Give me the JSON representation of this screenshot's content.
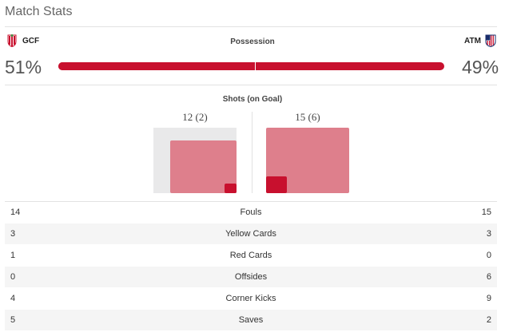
{
  "header": {
    "title": "Match Stats"
  },
  "teams": {
    "home": {
      "abbr": "GCF",
      "crest_icon": "granada-crest-icon"
    },
    "away": {
      "abbr": "ATM",
      "crest_icon": "atletico-crest-icon"
    }
  },
  "possession": {
    "label": "Possession",
    "home_pct": "51%",
    "away_pct": "49%",
    "home_value": 51,
    "away_value": 49
  },
  "shots": {
    "label": "Shots (on Goal)",
    "home_text": "12 (2)",
    "away_text": "15 (6)",
    "home_total": 12,
    "home_on_goal": 2,
    "away_total": 15,
    "away_on_goal": 6
  },
  "stats": [
    {
      "name": "Fouls",
      "home": "14",
      "away": "15"
    },
    {
      "name": "Yellow Cards",
      "home": "3",
      "away": "3"
    },
    {
      "name": "Red Cards",
      "home": "1",
      "away": "0"
    },
    {
      "name": "Offsides",
      "home": "0",
      "away": "6"
    },
    {
      "name": "Corner Kicks",
      "home": "4",
      "away": "9"
    },
    {
      "name": "Saves",
      "home": "5",
      "away": "2"
    }
  ],
  "colors": {
    "accent": "#c8102e",
    "shots_total": "#de7f8c",
    "box_bg": "#e9e9ea"
  }
}
